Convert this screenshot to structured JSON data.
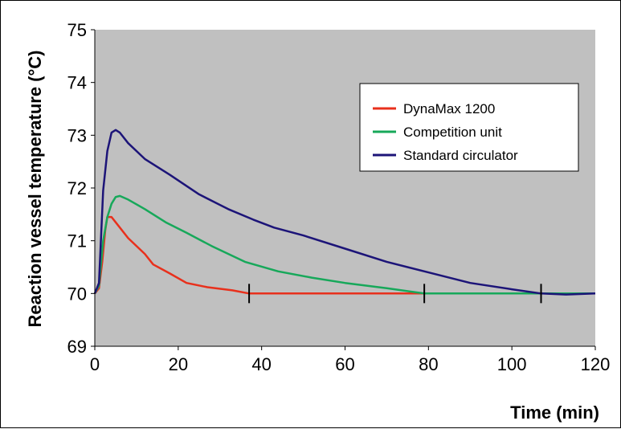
{
  "chart_data": {
    "type": "line",
    "title": "",
    "xlabel": "Time (min)",
    "ylabel": "Reaction vessel temperature (°C)",
    "xlim": [
      0,
      120
    ],
    "ylim": [
      69,
      75
    ],
    "x_ticks": [
      "0",
      "20",
      "40",
      "60",
      "80",
      "100",
      "120"
    ],
    "y_ticks": [
      "69",
      "70",
      "71",
      "72",
      "73",
      "74",
      "75"
    ],
    "legend_position": "top-right",
    "plot_background": "#c0c0c0",
    "series": [
      {
        "name": "DynaMax 1200",
        "color": "#e8301c",
        "points": [
          [
            0,
            70.0
          ],
          [
            1,
            70.1
          ],
          [
            1.8,
            70.6
          ],
          [
            2.5,
            71.2
          ],
          [
            3,
            71.45
          ],
          [
            4,
            71.45
          ],
          [
            5,
            71.35
          ],
          [
            8,
            71.05
          ],
          [
            12,
            70.75
          ],
          [
            14,
            70.55
          ],
          [
            18,
            70.38
          ],
          [
            22,
            70.2
          ],
          [
            27,
            70.12
          ],
          [
            33,
            70.06
          ],
          [
            37,
            70.0
          ],
          [
            45,
            70.0
          ],
          [
            60,
            70.0
          ],
          [
            80,
            70.0
          ],
          [
            100,
            70.0
          ],
          [
            108,
            70.0
          ]
        ]
      },
      {
        "name": "Competition unit",
        "color": "#17a85a",
        "points": [
          [
            0,
            70.0
          ],
          [
            1,
            70.15
          ],
          [
            2,
            71.0
          ],
          [
            3,
            71.45
          ],
          [
            4,
            71.7
          ],
          [
            5,
            71.83
          ],
          [
            6,
            71.85
          ],
          [
            8,
            71.78
          ],
          [
            12,
            71.6
          ],
          [
            17,
            71.35
          ],
          [
            22,
            71.15
          ],
          [
            28,
            70.9
          ],
          [
            36,
            70.6
          ],
          [
            44,
            70.42
          ],
          [
            52,
            70.3
          ],
          [
            60,
            70.2
          ],
          [
            70,
            70.1
          ],
          [
            79,
            70.0
          ],
          [
            90,
            70.0
          ],
          [
            100,
            70.0
          ],
          [
            110,
            70.0
          ],
          [
            120,
            70.0
          ]
        ]
      },
      {
        "name": "Standard circulator",
        "color": "#1c1478",
        "points": [
          [
            0,
            70.0
          ],
          [
            1,
            70.2
          ],
          [
            2,
            71.95
          ],
          [
            3,
            72.7
          ],
          [
            4,
            73.05
          ],
          [
            5,
            73.1
          ],
          [
            6,
            73.05
          ],
          [
            8,
            72.85
          ],
          [
            12,
            72.55
          ],
          [
            18,
            72.25
          ],
          [
            25,
            71.88
          ],
          [
            32,
            71.6
          ],
          [
            38,
            71.4
          ],
          [
            43,
            71.25
          ],
          [
            50,
            71.1
          ],
          [
            60,
            70.85
          ],
          [
            70,
            70.6
          ],
          [
            80,
            70.4
          ],
          [
            90,
            70.2
          ],
          [
            100,
            70.08
          ],
          [
            107,
            70.0
          ],
          [
            113,
            69.98
          ],
          [
            120,
            70.0
          ]
        ]
      }
    ],
    "marker_lines_x": [
      37,
      79,
      107
    ]
  }
}
